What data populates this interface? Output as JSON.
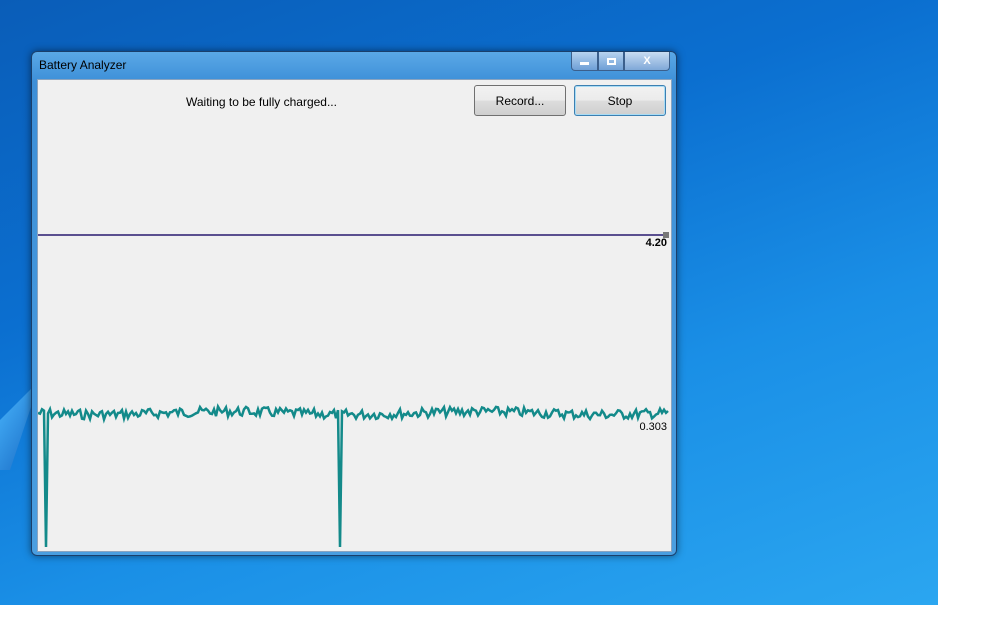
{
  "window": {
    "title": "Battery Analyzer",
    "minimize_icon": "minimize-icon",
    "maximize_icon": "maximize-icon",
    "close_icon": "close-icon",
    "close_glyph": "X"
  },
  "status_text": "Waiting to be fully charged...",
  "buttons": {
    "record": "Record...",
    "stop": "Stop"
  },
  "chart_data": {
    "type": "line",
    "series": [
      {
        "latest_label": "4.20",
        "value": 4.2,
        "color": "#5a4f8f"
      },
      {
        "latest_label": "0.303",
        "value": 0.303,
        "color": "#138a8a",
        "dropouts_at_fraction": [
          0.012,
          0.48
        ]
      }
    ]
  }
}
